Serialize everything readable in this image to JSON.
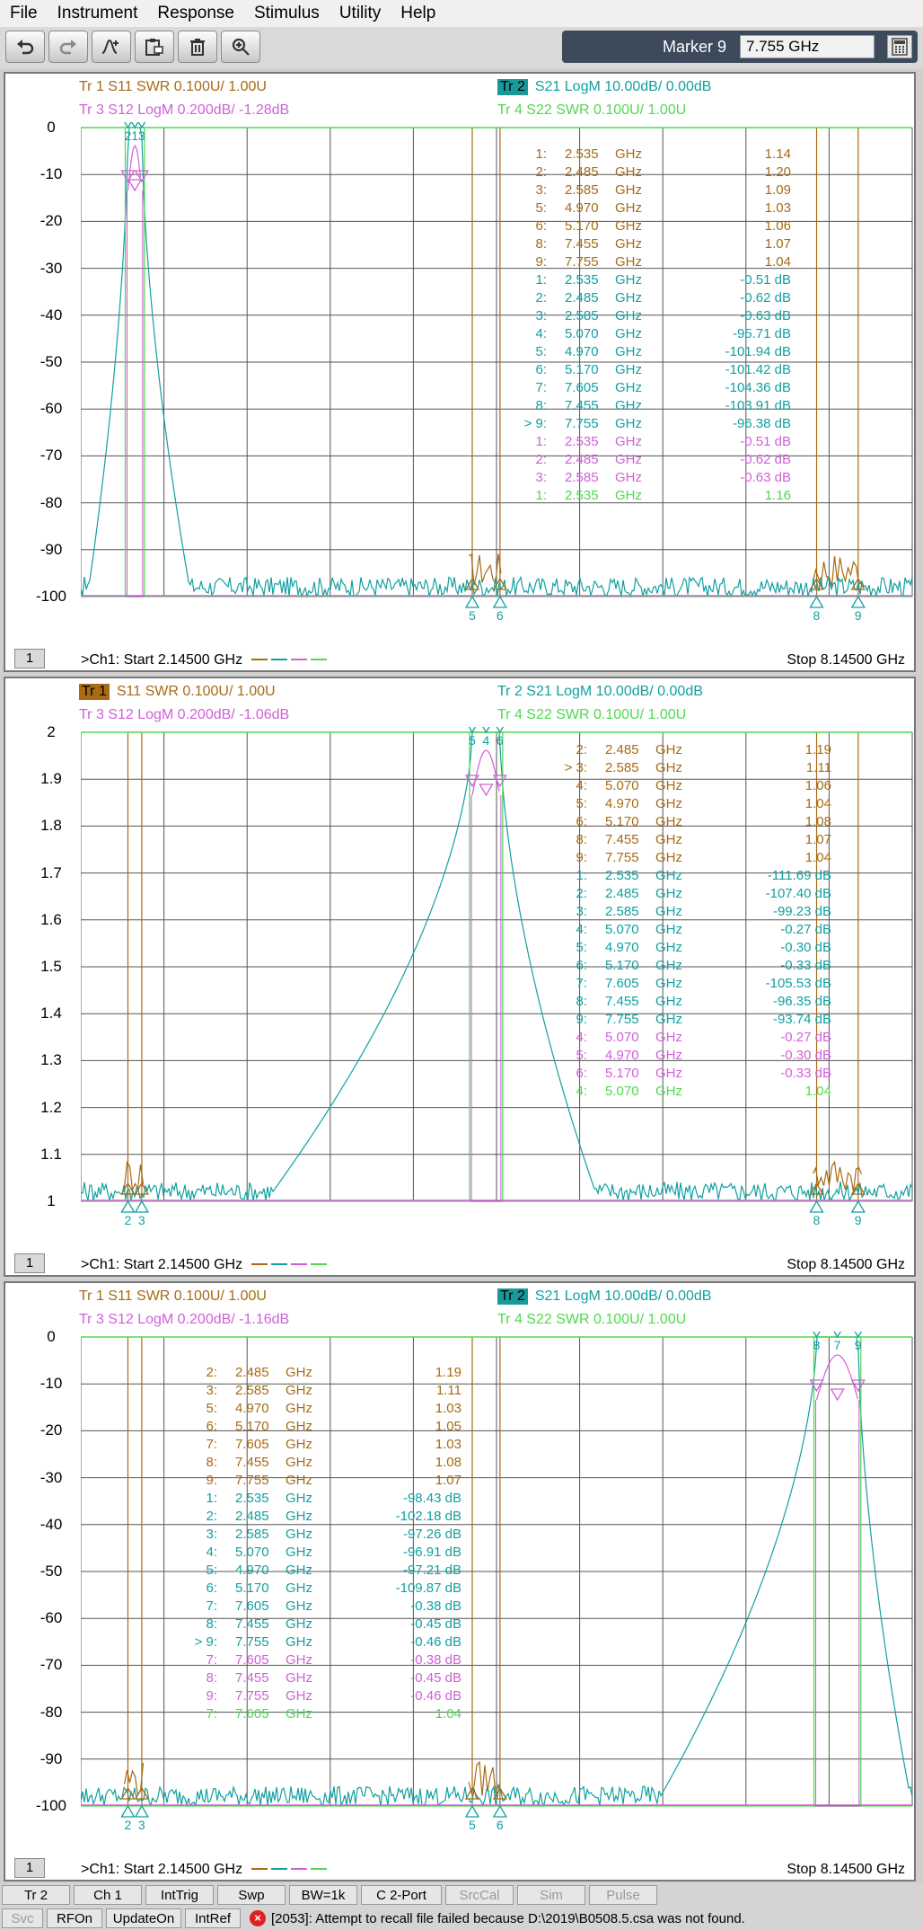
{
  "menu": [
    "File",
    "Instrument",
    "Response",
    "Stimulus",
    "Utility",
    "Help"
  ],
  "toolbar": {
    "buttons": [
      "undo-icon",
      "redo-icon",
      "add-marker-icon",
      "clipboard-icon",
      "delete-icon",
      "zoom-icon"
    ],
    "marker_label": "Marker 9",
    "marker_value": "7.755 GHz"
  },
  "windows": [
    {
      "titles": {
        "tr1": "Tr  1   S11 SWR 0.100U/  1.00U",
        "tr2_tag": "Tr  2",
        "tr2": "S21 LogM 10.00dB/  0.00dB",
        "tr3": "Tr  3   S12 LogM 0.200dB/  -1.28dB",
        "tr4": "Tr  4   S22 SWR 0.100U/  1.00U"
      },
      "active": "tr2",
      "y_ticks": [
        "0",
        "-10",
        "-20",
        "-30",
        "-40",
        "-50",
        "-60",
        "-70",
        "-80",
        "-90",
        "-100"
      ],
      "markers": [
        {
          "id": "1:",
          "freq": "2.535",
          "unit": "GHz",
          "val": "1.14",
          "color": "#a86a14"
        },
        {
          "id": "2:",
          "freq": "2.485",
          "unit": "GHz",
          "val": "1.20",
          "color": "#a86a14"
        },
        {
          "id": "3:",
          "freq": "2.585",
          "unit": "GHz",
          "val": "1.09",
          "color": "#a86a14"
        },
        {
          "id": "5:",
          "freq": "4.970",
          "unit": "GHz",
          "val": "1.03",
          "color": "#a86a14"
        },
        {
          "id": "6:",
          "freq": "5.170",
          "unit": "GHz",
          "val": "1.06",
          "color": "#a86a14"
        },
        {
          "id": "8:",
          "freq": "7.455",
          "unit": "GHz",
          "val": "1.07",
          "color": "#a86a14"
        },
        {
          "id": "9:",
          "freq": "7.755",
          "unit": "GHz",
          "val": "1.04",
          "color": "#a86a14"
        },
        {
          "id": "1:",
          "freq": "2.535",
          "unit": "GHz",
          "val": "-0.51 dB",
          "color": "#12a0a0"
        },
        {
          "id": "2:",
          "freq": "2.485",
          "unit": "GHz",
          "val": "-0.62 dB",
          "color": "#12a0a0"
        },
        {
          "id": "3:",
          "freq": "2.585",
          "unit": "GHz",
          "val": "-0.63 dB",
          "color": "#12a0a0"
        },
        {
          "id": "4:",
          "freq": "5.070",
          "unit": "GHz",
          "val": "-95.71 dB",
          "color": "#12a0a0"
        },
        {
          "id": "5:",
          "freq": "4.970",
          "unit": "GHz",
          "val": "-101.94 dB",
          "color": "#12a0a0"
        },
        {
          "id": "6:",
          "freq": "5.170",
          "unit": "GHz",
          "val": "-101.42 dB",
          "color": "#12a0a0"
        },
        {
          "id": "7:",
          "freq": "7.605",
          "unit": "GHz",
          "val": "-104.36 dB",
          "color": "#12a0a0"
        },
        {
          "id": "8:",
          "freq": "7.455",
          "unit": "GHz",
          "val": "-103.91 dB",
          "color": "#12a0a0"
        },
        {
          "id": "> 9:",
          "freq": "7.755",
          "unit": "GHz",
          "val": "-96.38 dB",
          "color": "#12a0a0"
        },
        {
          "id": "1:",
          "freq": "2.535",
          "unit": "GHz",
          "val": "-0.51 dB",
          "color": "#d060d8"
        },
        {
          "id": "2:",
          "freq": "2.485",
          "unit": "GHz",
          "val": "-0.62 dB",
          "color": "#d060d8"
        },
        {
          "id": "3:",
          "freq": "2.585",
          "unit": "GHz",
          "val": "-0.63 dB",
          "color": "#d060d8"
        },
        {
          "id": "1:",
          "freq": "2.535",
          "unit": "GHz",
          "val": "1.16",
          "color": "#50d850"
        }
      ],
      "footer": {
        "start": ">Ch1:  Start   2.14500 GHz",
        "stop": "Stop  8.14500 GHz",
        "ch": "1"
      }
    },
    {
      "titles": {
        "tr1_tag": "Tr  1",
        "tr1": "S11 SWR 0.100U/  1.00U",
        "tr2": "Tr  2   S21 LogM 10.00dB/  0.00dB",
        "tr3": "Tr  3   S12 LogM 0.200dB/  -1.06dB",
        "tr4": "Tr  4   S22 SWR 0.100U/  1.00U"
      },
      "active": "tr1",
      "y_ticks": [
        "2",
        "1.9",
        "1.8",
        "1.7",
        "1.6",
        "1.5",
        "1.4",
        "1.3",
        "1.2",
        "1.1",
        "1"
      ],
      "markers": [
        {
          "id": "2:",
          "freq": "2.485",
          "unit": "GHz",
          "val": "1.19",
          "color": "#a86a14"
        },
        {
          "id": "> 3:",
          "freq": "2.585",
          "unit": "GHz",
          "val": "1.11",
          "color": "#a86a14"
        },
        {
          "id": "4:",
          "freq": "5.070",
          "unit": "GHz",
          "val": "1.06",
          "color": "#a86a14"
        },
        {
          "id": "5:",
          "freq": "4.970",
          "unit": "GHz",
          "val": "1.04",
          "color": "#a86a14"
        },
        {
          "id": "6:",
          "freq": "5.170",
          "unit": "GHz",
          "val": "1.08",
          "color": "#a86a14"
        },
        {
          "id": "8:",
          "freq": "7.455",
          "unit": "GHz",
          "val": "1.07",
          "color": "#a86a14"
        },
        {
          "id": "9:",
          "freq": "7.755",
          "unit": "GHz",
          "val": "1.04",
          "color": "#a86a14"
        },
        {
          "id": "1:",
          "freq": "2.535",
          "unit": "GHz",
          "val": "-111.69 dB",
          "color": "#12a0a0"
        },
        {
          "id": "2:",
          "freq": "2.485",
          "unit": "GHz",
          "val": "-107.40 dB",
          "color": "#12a0a0"
        },
        {
          "id": "3:",
          "freq": "2.585",
          "unit": "GHz",
          "val": "-99.23 dB",
          "color": "#12a0a0"
        },
        {
          "id": "4:",
          "freq": "5.070",
          "unit": "GHz",
          "val": "-0.27 dB",
          "color": "#12a0a0"
        },
        {
          "id": "5:",
          "freq": "4.970",
          "unit": "GHz",
          "val": "-0.30 dB",
          "color": "#12a0a0"
        },
        {
          "id": "6:",
          "freq": "5.170",
          "unit": "GHz",
          "val": "-0.33 dB",
          "color": "#12a0a0"
        },
        {
          "id": "7:",
          "freq": "7.605",
          "unit": "GHz",
          "val": "-105.53 dB",
          "color": "#12a0a0"
        },
        {
          "id": "8:",
          "freq": "7.455",
          "unit": "GHz",
          "val": "-96.35 dB",
          "color": "#12a0a0"
        },
        {
          "id": "9:",
          "freq": "7.755",
          "unit": "GHz",
          "val": "-93.74 dB",
          "color": "#12a0a0"
        },
        {
          "id": "4:",
          "freq": "5.070",
          "unit": "GHz",
          "val": "-0.27 dB",
          "color": "#d060d8"
        },
        {
          "id": "5:",
          "freq": "4.970",
          "unit": "GHz",
          "val": "-0.30 dB",
          "color": "#d060d8"
        },
        {
          "id": "6:",
          "freq": "5.170",
          "unit": "GHz",
          "val": "-0.33 dB",
          "color": "#d060d8"
        },
        {
          "id": "4:",
          "freq": "5.070",
          "unit": "GHz",
          "val": "1.04",
          "color": "#50d850"
        }
      ],
      "footer": {
        "start": ">Ch1:  Start   2.14500 GHz",
        "stop": "Stop  8.14500 GHz",
        "ch": "1"
      }
    },
    {
      "titles": {
        "tr1": "Tr  1   S11 SWR 0.100U/  1.00U",
        "tr2_tag": "Tr  2",
        "tr2": "S21 LogM 10.00dB/  0.00dB",
        "tr3": "Tr  3   S12 LogM 0.200dB/  -1.16dB",
        "tr4": "Tr  4   S22 SWR 0.100U/  1.00U"
      },
      "active": "tr2",
      "y_ticks": [
        "0",
        "-10",
        "-20",
        "-30",
        "-40",
        "-50",
        "-60",
        "-70",
        "-80",
        "-90",
        "-100"
      ],
      "markers": [
        {
          "id": "2:",
          "freq": "2.485",
          "unit": "GHz",
          "val": "1.19",
          "color": "#a86a14"
        },
        {
          "id": "3:",
          "freq": "2.585",
          "unit": "GHz",
          "val": "1.11",
          "color": "#a86a14"
        },
        {
          "id": "5:",
          "freq": "4.970",
          "unit": "GHz",
          "val": "1.03",
          "color": "#a86a14"
        },
        {
          "id": "6:",
          "freq": "5.170",
          "unit": "GHz",
          "val": "1.05",
          "color": "#a86a14"
        },
        {
          "id": "7:",
          "freq": "7.605",
          "unit": "GHz",
          "val": "1.03",
          "color": "#a86a14"
        },
        {
          "id": "8:",
          "freq": "7.455",
          "unit": "GHz",
          "val": "1.08",
          "color": "#a86a14"
        },
        {
          "id": "9:",
          "freq": "7.755",
          "unit": "GHz",
          "val": "1.07",
          "color": "#a86a14"
        },
        {
          "id": "1:",
          "freq": "2.535",
          "unit": "GHz",
          "val": "-98.43 dB",
          "color": "#12a0a0"
        },
        {
          "id": "2:",
          "freq": "2.485",
          "unit": "GHz",
          "val": "-102.18 dB",
          "color": "#12a0a0"
        },
        {
          "id": "3:",
          "freq": "2.585",
          "unit": "GHz",
          "val": "-97.26 dB",
          "color": "#12a0a0"
        },
        {
          "id": "4:",
          "freq": "5.070",
          "unit": "GHz",
          "val": "-96.91 dB",
          "color": "#12a0a0"
        },
        {
          "id": "5:",
          "freq": "4.970",
          "unit": "GHz",
          "val": "-97.21 dB",
          "color": "#12a0a0"
        },
        {
          "id": "6:",
          "freq": "5.170",
          "unit": "GHz",
          "val": "-109.87 dB",
          "color": "#12a0a0"
        },
        {
          "id": "7:",
          "freq": "7.605",
          "unit": "GHz",
          "val": "-0.38 dB",
          "color": "#12a0a0"
        },
        {
          "id": "8:",
          "freq": "7.455",
          "unit": "GHz",
          "val": "-0.45 dB",
          "color": "#12a0a0"
        },
        {
          "id": "> 9:",
          "freq": "7.755",
          "unit": "GHz",
          "val": "-0.46 dB",
          "color": "#12a0a0"
        },
        {
          "id": "7:",
          "freq": "7.605",
          "unit": "GHz",
          "val": "-0.38 dB",
          "color": "#d060d8"
        },
        {
          "id": "8:",
          "freq": "7.455",
          "unit": "GHz",
          "val": "-0.45 dB",
          "color": "#d060d8"
        },
        {
          "id": "9:",
          "freq": "7.755",
          "unit": "GHz",
          "val": "-0.46 dB",
          "color": "#d060d8"
        },
        {
          "id": "7:",
          "freq": "7.605",
          "unit": "GHz",
          "val": "1.04",
          "color": "#50d850"
        }
      ],
      "footer": {
        "start": ">Ch1:  Start   2.14500 GHz",
        "stop": "Stop  8.14500 GHz",
        "ch": "1"
      }
    }
  ],
  "softkeys_row1": [
    {
      "label": "Tr 2",
      "enabled": true
    },
    {
      "label": "Ch 1",
      "enabled": true
    },
    {
      "label": "IntTrig",
      "enabled": true
    },
    {
      "label": "Swp",
      "enabled": true
    },
    {
      "label": "BW=1k",
      "enabled": true
    },
    {
      "label": "C  2-Port",
      "enabled": true
    },
    {
      "label": "SrcCal",
      "enabled": false
    },
    {
      "label": "Sim",
      "enabled": false
    },
    {
      "label": "Pulse",
      "enabled": false
    }
  ],
  "softkeys_row2": [
    {
      "label": "Svc",
      "enabled": false
    },
    {
      "label": "RFOn",
      "enabled": true
    },
    {
      "label": "UpdateOn",
      "enabled": true
    },
    {
      "label": "IntRef",
      "enabled": true
    }
  ],
  "status_message": "[2053]: Attempt to recall file failed because D:\\2019\\B0508.5.csa was not found.",
  "colors": {
    "s11": "#a86a14",
    "s21": "#12a0a0",
    "s12": "#d060d8",
    "s22": "#50d850",
    "grid": "#555555"
  }
}
